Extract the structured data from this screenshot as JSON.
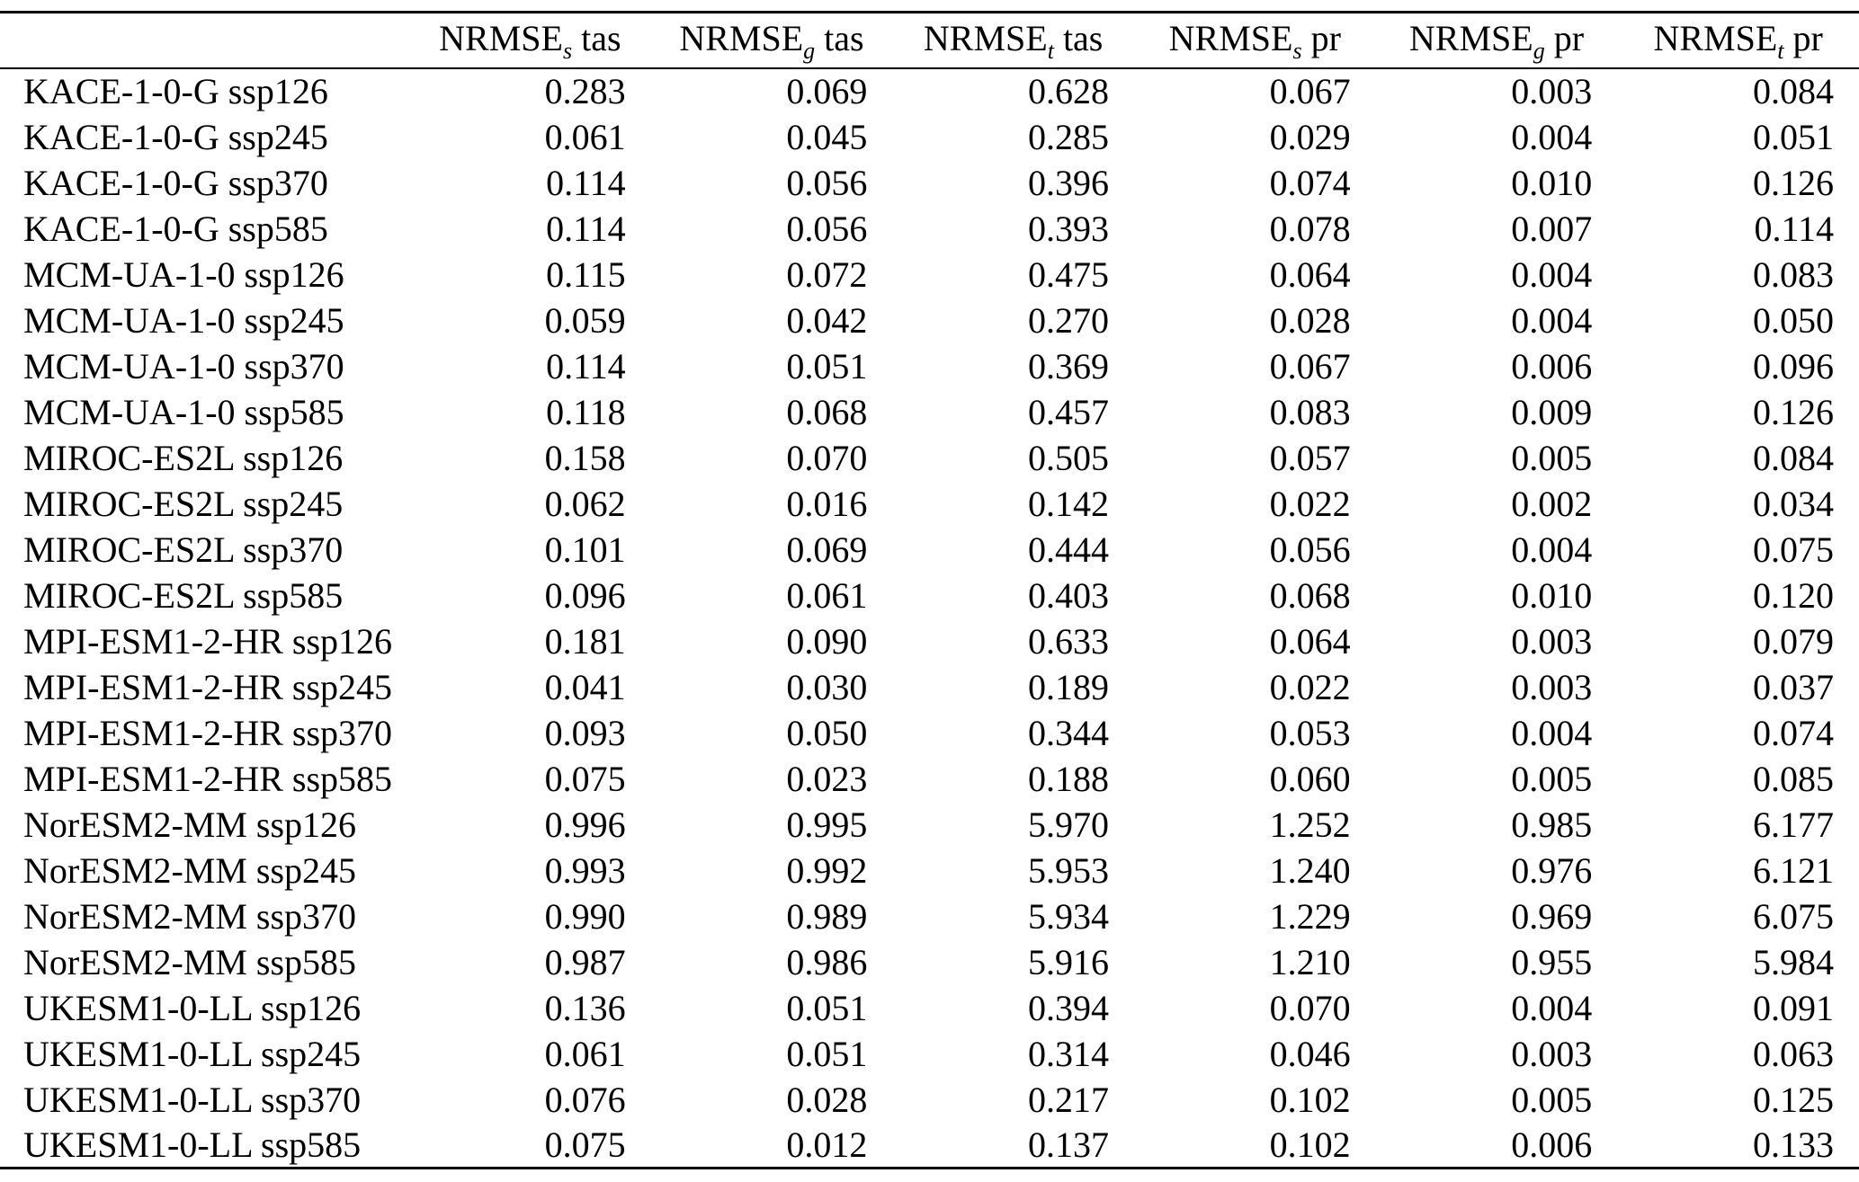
{
  "table": {
    "corner_label": "",
    "columns": [
      {
        "base": "NRMSE",
        "sub": "s",
        "var": "tas"
      },
      {
        "base": "NRMSE",
        "sub": "g",
        "var": "tas"
      },
      {
        "base": "NRMSE",
        "sub": "t",
        "var": "tas"
      },
      {
        "base": "NRMSE",
        "sub": "s",
        "var": "pr"
      },
      {
        "base": "NRMSE",
        "sub": "g",
        "var": "pr"
      },
      {
        "base": "NRMSE",
        "sub": "t",
        "var": "pr"
      }
    ],
    "rows": [
      {
        "label": "KACE-1-0-G ssp126",
        "values": [
          "0.283",
          "0.069",
          "0.628",
          "0.067",
          "0.003",
          "0.084"
        ]
      },
      {
        "label": "KACE-1-0-G ssp245",
        "values": [
          "0.061",
          "0.045",
          "0.285",
          "0.029",
          "0.004",
          "0.051"
        ]
      },
      {
        "label": "KACE-1-0-G ssp370",
        "values": [
          "0.114",
          "0.056",
          "0.396",
          "0.074",
          "0.010",
          "0.126"
        ]
      },
      {
        "label": "KACE-1-0-G ssp585",
        "values": [
          "0.114",
          "0.056",
          "0.393",
          "0.078",
          "0.007",
          "0.114"
        ]
      },
      {
        "label": "MCM-UA-1-0 ssp126",
        "values": [
          "0.115",
          "0.072",
          "0.475",
          "0.064",
          "0.004",
          "0.083"
        ]
      },
      {
        "label": "MCM-UA-1-0 ssp245",
        "values": [
          "0.059",
          "0.042",
          "0.270",
          "0.028",
          "0.004",
          "0.050"
        ]
      },
      {
        "label": "MCM-UA-1-0 ssp370",
        "values": [
          "0.114",
          "0.051",
          "0.369",
          "0.067",
          "0.006",
          "0.096"
        ]
      },
      {
        "label": "MCM-UA-1-0 ssp585",
        "values": [
          "0.118",
          "0.068",
          "0.457",
          "0.083",
          "0.009",
          "0.126"
        ]
      },
      {
        "label": "MIROC-ES2L ssp126",
        "values": [
          "0.158",
          "0.070",
          "0.505",
          "0.057",
          "0.005",
          "0.084"
        ]
      },
      {
        "label": "MIROC-ES2L ssp245",
        "values": [
          "0.062",
          "0.016",
          "0.142",
          "0.022",
          "0.002",
          "0.034"
        ]
      },
      {
        "label": "MIROC-ES2L ssp370",
        "values": [
          "0.101",
          "0.069",
          "0.444",
          "0.056",
          "0.004",
          "0.075"
        ]
      },
      {
        "label": "MIROC-ES2L ssp585",
        "values": [
          "0.096",
          "0.061",
          "0.403",
          "0.068",
          "0.010",
          "0.120"
        ]
      },
      {
        "label": "MPI-ESM1-2-HR ssp126",
        "values": [
          "0.181",
          "0.090",
          "0.633",
          "0.064",
          "0.003",
          "0.079"
        ]
      },
      {
        "label": "MPI-ESM1-2-HR ssp245",
        "values": [
          "0.041",
          "0.030",
          "0.189",
          "0.022",
          "0.003",
          "0.037"
        ]
      },
      {
        "label": "MPI-ESM1-2-HR ssp370",
        "values": [
          "0.093",
          "0.050",
          "0.344",
          "0.053",
          "0.004",
          "0.074"
        ]
      },
      {
        "label": "MPI-ESM1-2-HR ssp585",
        "values": [
          "0.075",
          "0.023",
          "0.188",
          "0.060",
          "0.005",
          "0.085"
        ]
      },
      {
        "label": "NorESM2-MM ssp126",
        "values": [
          "0.996",
          "0.995",
          "5.970",
          "1.252",
          "0.985",
          "6.177"
        ]
      },
      {
        "label": "NorESM2-MM ssp245",
        "values": [
          "0.993",
          "0.992",
          "5.953",
          "1.240",
          "0.976",
          "6.121"
        ]
      },
      {
        "label": "NorESM2-MM ssp370",
        "values": [
          "0.990",
          "0.989",
          "5.934",
          "1.229",
          "0.969",
          "6.075"
        ]
      },
      {
        "label": "NorESM2-MM ssp585",
        "values": [
          "0.987",
          "0.986",
          "5.916",
          "1.210",
          "0.955",
          "5.984"
        ]
      },
      {
        "label": "UKESM1-0-LL ssp126",
        "values": [
          "0.136",
          "0.051",
          "0.394",
          "0.070",
          "0.004",
          "0.091"
        ]
      },
      {
        "label": "UKESM1-0-LL ssp245",
        "values": [
          "0.061",
          "0.051",
          "0.314",
          "0.046",
          "0.003",
          "0.063"
        ]
      },
      {
        "label": "UKESM1-0-LL ssp370",
        "values": [
          "0.076",
          "0.028",
          "0.217",
          "0.102",
          "0.005",
          "0.125"
        ]
      },
      {
        "label": "UKESM1-0-LL ssp585",
        "values": [
          "0.075",
          "0.012",
          "0.137",
          "0.102",
          "0.006",
          "0.133"
        ]
      }
    ]
  }
}
